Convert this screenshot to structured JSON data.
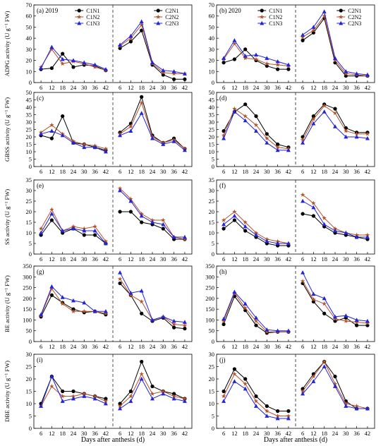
{
  "figure": {
    "x_axis_label": "Days after anthesis (d)",
    "legend_left": [
      "C1N1",
      "C1N2",
      "C1N3"
    ],
    "legend_right": [
      "C2N1",
      "C2N2",
      "C2N3"
    ]
  },
  "colors": {
    "N1": "#000000",
    "N2": "#b5522b",
    "N3": "#2323d8"
  },
  "chart_data": [
    {
      "type": "line",
      "panel": "a",
      "title": "(a) 2019",
      "ylabel": "ADPG activity (U g⁻¹ FW)",
      "ylim": [
        0,
        70
      ],
      "yticks": [
        0,
        10,
        20,
        30,
        40,
        50,
        60,
        70
      ],
      "x": [
        6,
        12,
        18,
        24,
        30,
        36,
        42
      ],
      "legend": "top",
      "series": [
        {
          "name": "C1N1",
          "c": 1,
          "n": 1,
          "values": [
            12,
            13,
            26,
            14,
            16,
            15,
            11
          ]
        },
        {
          "name": "C1N2",
          "c": 1,
          "n": 2,
          "values": [
            14,
            30,
            17,
            19,
            17,
            14,
            11
          ]
        },
        {
          "name": "C1N3",
          "c": 1,
          "n": 3,
          "values": [
            13,
            32,
            21,
            20,
            18,
            16,
            12
          ]
        },
        {
          "name": "C2N1",
          "c": 2,
          "n": 1,
          "values": [
            31,
            37,
            47,
            16,
            7,
            3,
            3
          ]
        },
        {
          "name": "C2N2",
          "c": 2,
          "n": 2,
          "values": [
            33,
            40,
            52,
            17,
            9,
            8,
            8
          ]
        },
        {
          "name": "C2N3",
          "c": 2,
          "n": 3,
          "values": [
            34,
            42,
            55,
            18,
            11,
            10,
            8
          ]
        }
      ]
    },
    {
      "type": "line",
      "panel": "b",
      "title": "(b) 2020",
      "ylabel": "",
      "ylim": [
        0,
        70
      ],
      "yticks": [
        0,
        10,
        20,
        30,
        40,
        50,
        60,
        70
      ],
      "x": [
        6,
        12,
        18,
        24,
        30,
        36,
        42
      ],
      "legend": "top",
      "series": [
        {
          "name": "C1N1",
          "c": 1,
          "n": 1,
          "values": [
            18,
            21,
            30,
            20,
            15,
            12,
            12
          ]
        },
        {
          "name": "C1N2",
          "c": 1,
          "n": 2,
          "values": [
            21,
            35,
            22,
            21,
            17,
            16,
            15
          ]
        },
        {
          "name": "C1N3",
          "c": 1,
          "n": 3,
          "values": [
            22,
            38,
            24,
            25,
            22,
            19,
            16
          ]
        },
        {
          "name": "C2N1",
          "c": 2,
          "n": 1,
          "values": [
            38,
            45,
            58,
            18,
            6,
            6,
            6
          ]
        },
        {
          "name": "C2N2",
          "c": 2,
          "n": 2,
          "values": [
            41,
            47,
            60,
            20,
            8,
            7,
            6
          ]
        },
        {
          "name": "C2N3",
          "c": 2,
          "n": 3,
          "values": [
            43,
            50,
            64,
            22,
            10,
            8,
            7
          ]
        }
      ]
    },
    {
      "type": "line",
      "panel": "c",
      "title": "(c)",
      "ylabel": "GBSS activity (U g⁻¹ FW)",
      "ylim": [
        0,
        50
      ],
      "yticks": [
        0,
        5,
        10,
        15,
        20,
        25,
        30,
        35,
        40,
        45,
        50
      ],
      "x": [
        6,
        12,
        18,
        24,
        30,
        36,
        42
      ],
      "series": [
        {
          "name": "C1N1",
          "c": 1,
          "n": 1,
          "values": [
            21,
            19,
            34,
            16,
            15,
            13,
            11
          ]
        },
        {
          "name": "C1N2",
          "c": 1,
          "n": 2,
          "values": [
            23,
            28,
            22,
            17,
            15,
            14,
            12
          ]
        },
        {
          "name": "C1N3",
          "c": 1,
          "n": 3,
          "values": [
            22,
            24,
            21,
            16,
            13,
            13,
            10
          ]
        },
        {
          "name": "C2N1",
          "c": 2,
          "n": 1,
          "values": [
            23,
            29,
            47,
            21,
            16,
            19,
            12
          ]
        },
        {
          "name": "C2N2",
          "c": 2,
          "n": 2,
          "values": [
            22,
            27,
            43,
            20,
            16,
            18,
            12
          ]
        },
        {
          "name": "C2N3",
          "c": 2,
          "n": 3,
          "values": [
            21,
            24,
            36,
            19,
            15,
            17,
            11
          ]
        }
      ]
    },
    {
      "type": "line",
      "panel": "d",
      "title": "(d)",
      "ylabel": "",
      "ylim": [
        0,
        50
      ],
      "yticks": [
        0,
        5,
        10,
        15,
        20,
        25,
        30,
        35,
        40,
        45,
        50
      ],
      "x": [
        6,
        12,
        18,
        24,
        30,
        36,
        42
      ],
      "series": [
        {
          "name": "C1N1",
          "c": 1,
          "n": 1,
          "values": [
            24,
            37,
            42,
            34,
            22,
            15,
            13
          ]
        },
        {
          "name": "C1N2",
          "c": 1,
          "n": 2,
          "values": [
            21,
            39,
            34,
            28,
            19,
            13,
            12
          ]
        },
        {
          "name": "C1N3",
          "c": 1,
          "n": 3,
          "values": [
            19,
            37,
            31,
            24,
            16,
            11,
            11
          ]
        },
        {
          "name": "C2N1",
          "c": 2,
          "n": 1,
          "values": [
            20,
            34,
            42,
            39,
            26,
            23,
            23
          ]
        },
        {
          "name": "C2N2",
          "c": 2,
          "n": 2,
          "values": [
            18,
            32,
            41,
            36,
            24,
            22,
            22
          ]
        },
        {
          "name": "C2N3",
          "c": 2,
          "n": 3,
          "values": [
            16,
            29,
            37,
            27,
            20,
            20,
            19
          ]
        }
      ]
    },
    {
      "type": "line",
      "panel": "e",
      "title": "(e)",
      "ylabel": "SS activity (U g⁻¹ FW)",
      "ylim": [
        0,
        35
      ],
      "yticks": [
        0,
        5,
        10,
        15,
        20,
        25,
        30,
        35
      ],
      "x": [
        6,
        12,
        18,
        24,
        30,
        36,
        42
      ],
      "series": [
        {
          "name": "C1N1",
          "c": 1,
          "n": 1,
          "values": [
            9,
            16,
            10,
            12,
            9,
            9,
            5
          ]
        },
        {
          "name": "C1N2",
          "c": 1,
          "n": 2,
          "values": [
            12,
            21,
            11,
            13,
            12,
            13,
            6
          ]
        },
        {
          "name": "C1N3",
          "c": 1,
          "n": 3,
          "values": [
            10,
            19,
            11,
            12,
            11,
            11,
            5
          ]
        },
        {
          "name": "C2N1",
          "c": 2,
          "n": 1,
          "values": [
            20,
            20,
            15,
            14,
            12,
            7,
            7
          ]
        },
        {
          "name": "C2N2",
          "c": 2,
          "n": 2,
          "values": [
            31,
            26,
            19,
            16,
            16,
            8,
            7
          ]
        },
        {
          "name": "C2N3",
          "c": 2,
          "n": 3,
          "values": [
            30,
            25,
            18,
            15,
            14,
            8,
            8
          ]
        }
      ]
    },
    {
      "type": "line",
      "panel": "f",
      "title": "(f)",
      "ylabel": "",
      "ylim": [
        0,
        35
      ],
      "yticks": [
        0,
        5,
        10,
        15,
        20,
        25,
        30,
        35
      ],
      "x": [
        6,
        12,
        18,
        24,
        30,
        36,
        42
      ],
      "series": [
        {
          "name": "C1N1",
          "c": 1,
          "n": 1,
          "values": [
            12,
            16,
            11,
            8,
            5,
            4,
            4
          ]
        },
        {
          "name": "C1N2",
          "c": 1,
          "n": 2,
          "values": [
            16,
            20,
            15,
            10,
            7,
            6,
            5
          ]
        },
        {
          "name": "C1N3",
          "c": 1,
          "n": 3,
          "values": [
            14,
            18,
            13,
            9,
            6,
            5,
            5
          ]
        },
        {
          "name": "C2N1",
          "c": 2,
          "n": 1,
          "values": [
            19,
            18,
            13,
            10,
            9,
            8,
            7
          ]
        },
        {
          "name": "C2N2",
          "c": 2,
          "n": 2,
          "values": [
            28,
            24,
            17,
            12,
            10,
            9,
            9
          ]
        },
        {
          "name": "C2N3",
          "c": 2,
          "n": 3,
          "values": [
            25,
            22,
            14,
            11,
            10,
            8,
            8
          ]
        }
      ]
    },
    {
      "type": "line",
      "panel": "g",
      "title": "(g)",
      "ylabel": "BE activity (U g⁻¹ FW)",
      "ylim": [
        0,
        350
      ],
      "yticks": [
        0,
        50,
        100,
        150,
        200,
        250,
        300,
        350
      ],
      "x": [
        6,
        12,
        18,
        24,
        30,
        36,
        42
      ],
      "series": [
        {
          "name": "C1N1",
          "c": 1,
          "n": 1,
          "values": [
            115,
            215,
            180,
            150,
            135,
            140,
            125
          ]
        },
        {
          "name": "C1N2",
          "c": 1,
          "n": 2,
          "values": [
            120,
            245,
            175,
            140,
            140,
            140,
            130
          ]
        },
        {
          "name": "C1N3",
          "c": 1,
          "n": 3,
          "values": [
            125,
            255,
            205,
            190,
            180,
            140,
            140
          ]
        },
        {
          "name": "C2N1",
          "c": 2,
          "n": 1,
          "values": [
            270,
            215,
            130,
            95,
            110,
            65,
            60
          ]
        },
        {
          "name": "C2N2",
          "c": 2,
          "n": 2,
          "values": [
            290,
            215,
            185,
            100,
            115,
            80,
            75
          ]
        },
        {
          "name": "C2N3",
          "c": 2,
          "n": 3,
          "values": [
            320,
            225,
            235,
            100,
            115,
            95,
            90
          ]
        }
      ]
    },
    {
      "type": "line",
      "panel": "h",
      "title": "(h)",
      "ylabel": "",
      "ylim": [
        0,
        350
      ],
      "yticks": [
        0,
        50,
        100,
        150,
        200,
        250,
        300,
        350
      ],
      "x": [
        6,
        12,
        18,
        24,
        30,
        36,
        42
      ],
      "series": [
        {
          "name": "C1N1",
          "c": 1,
          "n": 1,
          "values": [
            80,
            210,
            145,
            75,
            40,
            45,
            45
          ]
        },
        {
          "name": "C1N2",
          "c": 1,
          "n": 2,
          "values": [
            95,
            225,
            155,
            95,
            45,
            45,
            45
          ]
        },
        {
          "name": "C1N3",
          "c": 1,
          "n": 3,
          "values": [
            105,
            230,
            175,
            110,
            55,
            50,
            50
          ]
        },
        {
          "name": "C2N1",
          "c": 2,
          "n": 1,
          "values": [
            270,
            185,
            130,
            95,
            110,
            75,
            75
          ]
        },
        {
          "name": "C2N2",
          "c": 2,
          "n": 2,
          "values": [
            280,
            195,
            175,
            105,
            95,
            90,
            85
          ]
        },
        {
          "name": "C2N3",
          "c": 2,
          "n": 3,
          "values": [
            320,
            220,
            200,
            115,
            120,
            100,
            95
          ]
        }
      ]
    },
    {
      "type": "line",
      "panel": "i",
      "title": "(i)",
      "ylabel": "DBE activity (U g⁻¹ FW)",
      "ylim": [
        0,
        30
      ],
      "yticks": [
        0,
        5,
        10,
        15,
        20,
        25,
        30
      ],
      "x": [
        6,
        12,
        18,
        24,
        30,
        36,
        42
      ],
      "series": [
        {
          "name": "C1N1",
          "c": 1,
          "n": 1,
          "values": [
            10,
            21,
            15,
            15,
            14,
            13,
            12
          ]
        },
        {
          "name": "C1N2",
          "c": 1,
          "n": 2,
          "values": [
            9,
            17,
            13,
            13,
            14,
            13,
            11
          ]
        },
        {
          "name": "C1N3",
          "c": 1,
          "n": 3,
          "values": [
            9,
            21,
            11,
            12,
            13,
            12,
            10
          ]
        },
        {
          "name": "C2N1",
          "c": 2,
          "n": 1,
          "values": [
            10,
            15,
            27,
            17,
            15,
            14,
            12
          ]
        },
        {
          "name": "C2N2",
          "c": 2,
          "n": 2,
          "values": [
            9,
            13,
            22,
            14,
            15,
            13,
            12
          ]
        },
        {
          "name": "C2N3",
          "c": 2,
          "n": 3,
          "values": [
            8,
            11,
            20,
            12,
            14,
            12,
            11
          ]
        }
      ]
    },
    {
      "type": "line",
      "panel": "j",
      "title": "(j)",
      "ylabel": "",
      "ylim": [
        0,
        30
      ],
      "yticks": [
        0,
        5,
        10,
        15,
        20,
        25,
        30
      ],
      "x": [
        6,
        12,
        18,
        24,
        30,
        36,
        42
      ],
      "series": [
        {
          "name": "C1N1",
          "c": 1,
          "n": 1,
          "values": [
            15,
            24,
            20,
            13,
            9,
            7,
            7
          ]
        },
        {
          "name": "C1N2",
          "c": 1,
          "n": 2,
          "values": [
            13,
            22,
            18,
            11,
            7,
            5,
            5
          ]
        },
        {
          "name": "C1N3",
          "c": 1,
          "n": 3,
          "values": [
            11,
            19,
            16,
            9,
            5,
            4,
            4
          ]
        },
        {
          "name": "C2N1",
          "c": 2,
          "n": 1,
          "values": [
            16,
            22,
            27,
            21,
            11,
            8,
            8
          ]
        },
        {
          "name": "C2N2",
          "c": 2,
          "n": 2,
          "values": [
            15,
            21,
            27,
            18,
            10,
            9,
            8
          ]
        },
        {
          "name": "C2N3",
          "c": 2,
          "n": 3,
          "values": [
            14,
            19,
            25,
            17,
            9,
            8,
            8
          ]
        }
      ]
    }
  ]
}
